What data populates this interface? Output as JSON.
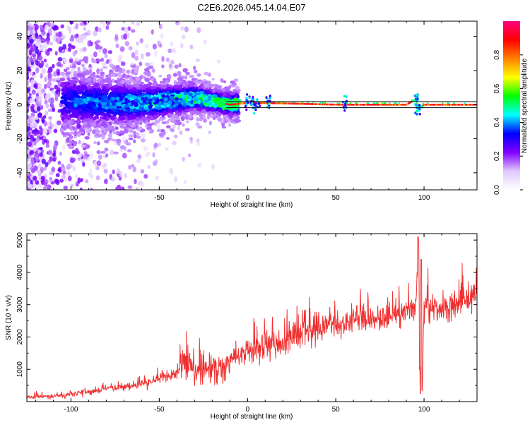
{
  "title": "C2E6.2026.045.14.04.E07",
  "chart_data": [
    {
      "type": "heatmap",
      "name": "spectrogram",
      "xlabel": "Height of straight line (km)",
      "ylabel": "Frequency (Hz)",
      "xlim": [
        -125,
        130
      ],
      "ylim": [
        -50,
        49
      ],
      "xticks": [
        "-100",
        "-50",
        "0",
        "50",
        "100"
      ],
      "xtick_values": [
        -100,
        -50,
        0,
        50,
        100
      ],
      "yticks": [
        "40",
        "20",
        "0",
        "-20",
        "-40"
      ],
      "ytick_values": [
        40,
        20,
        0,
        -20,
        -40
      ],
      "colorbar": {
        "label": "Normalized spectral amplitude",
        "range": [
          0,
          1
        ],
        "ticks": [
          "0.0",
          "0.2",
          "0.4",
          "0.6",
          "0.8"
        ],
        "tick_values": [
          0.0,
          0.2,
          0.4,
          0.6,
          0.8
        ],
        "colors": [
          "#ffffff",
          "#e0c8ff",
          "#8000ff",
          "#0000ff",
          "#00ffff",
          "#00ff00",
          "#ffff00",
          "#ff8000",
          "#ff0000",
          "#ff0080"
        ]
      },
      "ridge": {
        "description": "frequency ridge along center",
        "x": [
          -100,
          -80,
          -60,
          -40,
          -30,
          -20,
          -10,
          0,
          10,
          50,
          90,
          95,
          97,
          100,
          130
        ],
        "y": [
          2,
          1,
          1,
          3,
          4,
          2,
          0,
          1,
          1,
          0,
          0,
          3,
          -2,
          0,
          0
        ]
      },
      "reference_lines_hz": [
        1.8,
        -1.8
      ]
    },
    {
      "type": "line",
      "name": "snr",
      "xlabel": "Height of straight line (km)",
      "ylabel": "SNR (10 * v/v)",
      "xlim": [
        -125,
        130
      ],
      "ylim": [
        0,
        5200
      ],
      "xticks": [
        "-100",
        "-50",
        "0",
        "50",
        "100"
      ],
      "xtick_values": [
        -100,
        -50,
        0,
        50,
        100
      ],
      "yticks": [
        "5000",
        "4000",
        "3000",
        "2000",
        "1000"
      ],
      "ytick_values": [
        5000,
        4000,
        3000,
        2000,
        1000
      ],
      "series": [
        {
          "name": "SNR",
          "color": "#f03030",
          "x": [
            -125,
            -110,
            -100,
            -90,
            -80,
            -70,
            -60,
            -50,
            -40,
            -36,
            -30,
            -20,
            -10,
            0,
            10,
            20,
            30,
            40,
            50,
            60,
            70,
            80,
            90,
            95,
            96,
            97,
            98,
            99,
            100,
            105,
            110,
            120,
            130
          ],
          "y": [
            150,
            170,
            230,
            320,
            400,
            450,
            550,
            700,
            850,
            1350,
            900,
            1000,
            1200,
            1500,
            1750,
            1900,
            2100,
            2250,
            2350,
            2450,
            2550,
            2650,
            2850,
            2950,
            3800,
            5100,
            1000,
            300,
            3000,
            2850,
            2900,
            3050,
            3250
          ]
        }
      ]
    }
  ]
}
